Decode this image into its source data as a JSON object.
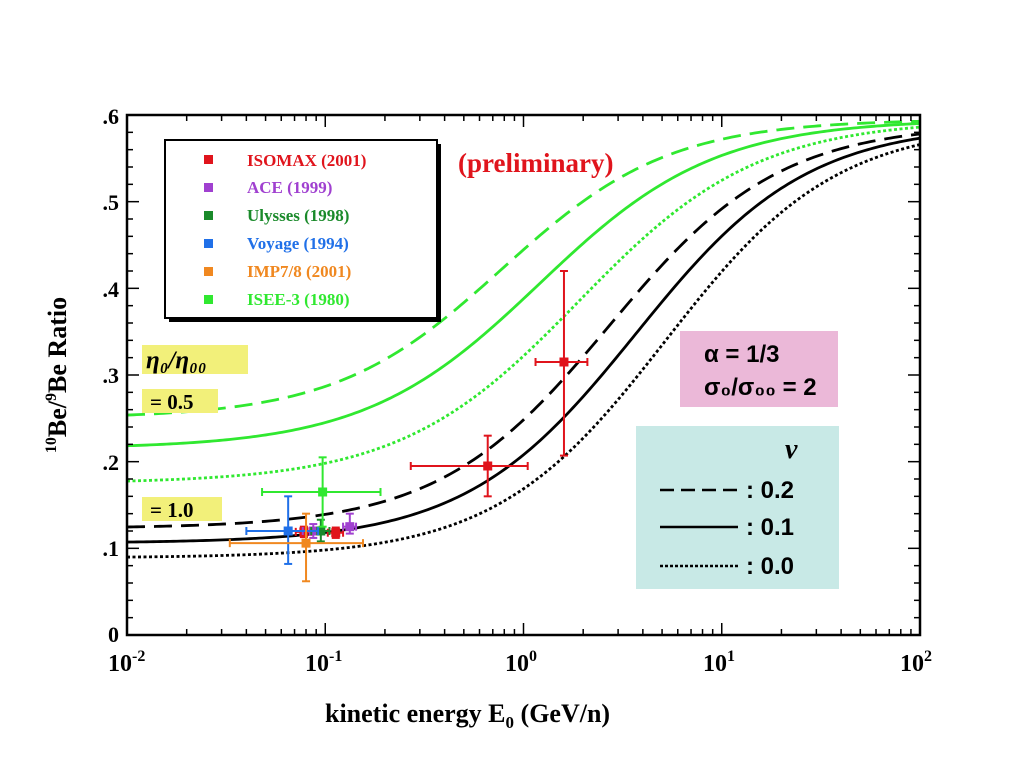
{
  "chart_data": {
    "type": "line",
    "xlabel": "kinetic energy  E",
    "xlabel_sub": "0",
    "xlabel_unit": " (GeV/n)",
    "ylabel_sup1": "10",
    "ylabel_a": "Be/",
    "ylabel_sup2": "9",
    "ylabel_b": "Be  Ratio",
    "x_scale": "log",
    "xlim": [
      0.01,
      100
    ],
    "ylim": [
      0,
      0.6
    ],
    "x_ticks": [
      {
        "value": 0.01,
        "base": "10",
        "exp": "-2"
      },
      {
        "value": 0.1,
        "base": "10",
        "exp": "-1"
      },
      {
        "value": 1,
        "base": "10",
        "exp": "0"
      },
      {
        "value": 10,
        "base": "10",
        "exp": "1"
      },
      {
        "value": 100,
        "base": "10",
        "exp": "2"
      }
    ],
    "y_ticks": [
      {
        "value": 0,
        "label": "0"
      },
      {
        "value": 0.1,
        "label": ".1"
      },
      {
        "value": 0.2,
        "label": ".2"
      },
      {
        "value": 0.3,
        "label": ".3"
      },
      {
        "value": 0.4,
        "label": ".4"
      },
      {
        "value": 0.5,
        "label": ".5"
      },
      {
        "value": 0.6,
        "label": ".6"
      }
    ],
    "legend_position": "top-left",
    "annotations": {
      "preliminary": "(preliminary)",
      "eta_header": "η₀/η₀₀",
      "eta_half": "= 0.5",
      "eta_one": "= 1.0",
      "alpha_line": "α = 1/3",
      "sigma_line": "σ₀/σ₀₀ = 2",
      "nu_header": "ν",
      "nu_values": [
        ":  0.2",
        ":  0.1",
        ":  0.0"
      ]
    },
    "data_series": [
      {
        "name": "ISOMAX (2001)",
        "color": "#e0141c",
        "points": [
          {
            "x": 0.078,
            "y": 0.119,
            "xerr": [
              0.071,
              0.085
            ],
            "yerr": [
              0.113,
              0.125
            ]
          },
          {
            "x": 0.113,
            "y": 0.118,
            "xerr": [
              0.103,
              0.123
            ],
            "yerr": [
              0.112,
              0.124
            ]
          },
          {
            "x": 0.66,
            "y": 0.195,
            "xerr": [
              0.27,
              1.05
            ],
            "yerr": [
              0.16,
              0.23
            ]
          },
          {
            "x": 1.6,
            "y": 0.315,
            "xerr": [
              1.15,
              2.1
            ],
            "yerr": [
              0.207,
              0.42
            ]
          }
        ]
      },
      {
        "name": "ACE (1999)",
        "color": "#a040d0",
        "points": [
          {
            "x": 0.087,
            "y": 0.12,
            "xerr": [
              0.077,
              0.097
            ],
            "yerr": [
              0.112,
              0.128
            ]
          },
          {
            "x": 0.133,
            "y": 0.125,
            "xerr": [
              0.123,
              0.143
            ],
            "yerr": [
              0.117,
              0.14
            ]
          }
        ]
      },
      {
        "name": "Ulysses (1998)",
        "color": "#1a8a2a",
        "points": [
          {
            "x": 0.095,
            "y": 0.12,
            "xerr": [
              0.085,
              0.105
            ],
            "yerr": [
              0.108,
              0.133
            ]
          }
        ]
      },
      {
        "name": "Voyage (1994)",
        "color": "#2070e8",
        "points": [
          {
            "x": 0.065,
            "y": 0.12,
            "xerr": [
              0.04,
              0.092
            ],
            "yerr": [
              0.082,
              0.16
            ]
          }
        ]
      },
      {
        "name": "IMP7/8 (2001)",
        "color": "#f08820",
        "points": [
          {
            "x": 0.08,
            "y": 0.106,
            "xerr": [
              0.033,
              0.155
            ],
            "yerr": [
              0.062,
              0.14
            ]
          }
        ]
      },
      {
        "name": "ISEE-3 (1980)",
        "color": "#30e830",
        "points": [
          {
            "x": 0.097,
            "y": 0.165,
            "xerr": [
              0.048,
              0.19
            ],
            "yerr": [
              0.125,
              0.205
            ]
          }
        ]
      }
    ],
    "curves": [
      {
        "color": "#30e830",
        "dash": "long",
        "y_low": 0.25,
        "y_high": 0.595,
        "e_mid": 0.78,
        "s": 0.42
      },
      {
        "color": "#30e830",
        "dash": "solid",
        "y_low": 0.215,
        "y_high": 0.595,
        "e_mid": 1.2,
        "s": 0.44
      },
      {
        "color": "#30e830",
        "dash": "dot",
        "y_low": 0.175,
        "y_high": 0.595,
        "e_mid": 1.9,
        "s": 0.45
      },
      {
        "color": "#000000",
        "dash": "long",
        "y_low": 0.123,
        "y_high": 0.59,
        "e_mid": 2.7,
        "s": 0.43
      },
      {
        "color": "#000000",
        "dash": "solid",
        "y_low": 0.106,
        "y_high": 0.59,
        "e_mid": 3.7,
        "s": 0.43
      },
      {
        "color": "#000000",
        "dash": "dot",
        "y_low": 0.089,
        "y_high": 0.59,
        "e_mid": 5.2,
        "s": 0.43
      }
    ]
  }
}
